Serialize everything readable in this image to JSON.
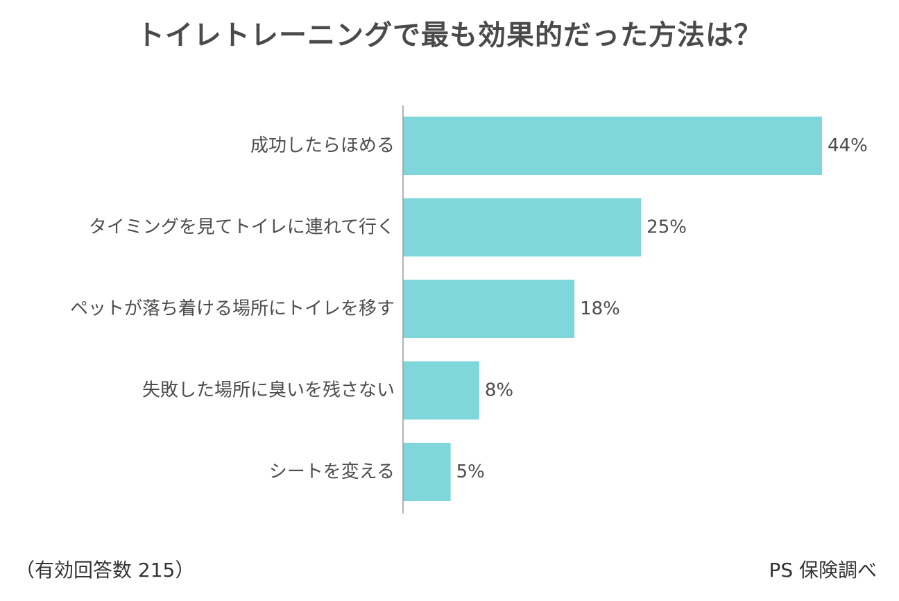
{
  "title": "トイレトレーニングで最も効果的だった方法は？",
  "footnote": "（有効回答数 215）",
  "source": "PS 保険調べ",
  "colors": {
    "bar": "#7fd7dc",
    "axis": "#9a9a9a",
    "label": "#4d4d4d"
  },
  "chart_data": {
    "type": "bar",
    "orientation": "horizontal",
    "categories": [
      "成功したらほめる",
      "タイミングを見てトイレに連れて行く",
      "ペットが落ち着ける場所にトイレを移す",
      "失敗した場所に臭いを残さない",
      "シートを変える"
    ],
    "values": [
      44,
      25,
      18,
      8,
      5
    ],
    "value_labels": [
      "44%",
      "25%",
      "18%",
      "8%",
      "5%"
    ],
    "unit": "%",
    "xlim": [
      0,
      44
    ],
    "grid": false,
    "legend": "none"
  }
}
